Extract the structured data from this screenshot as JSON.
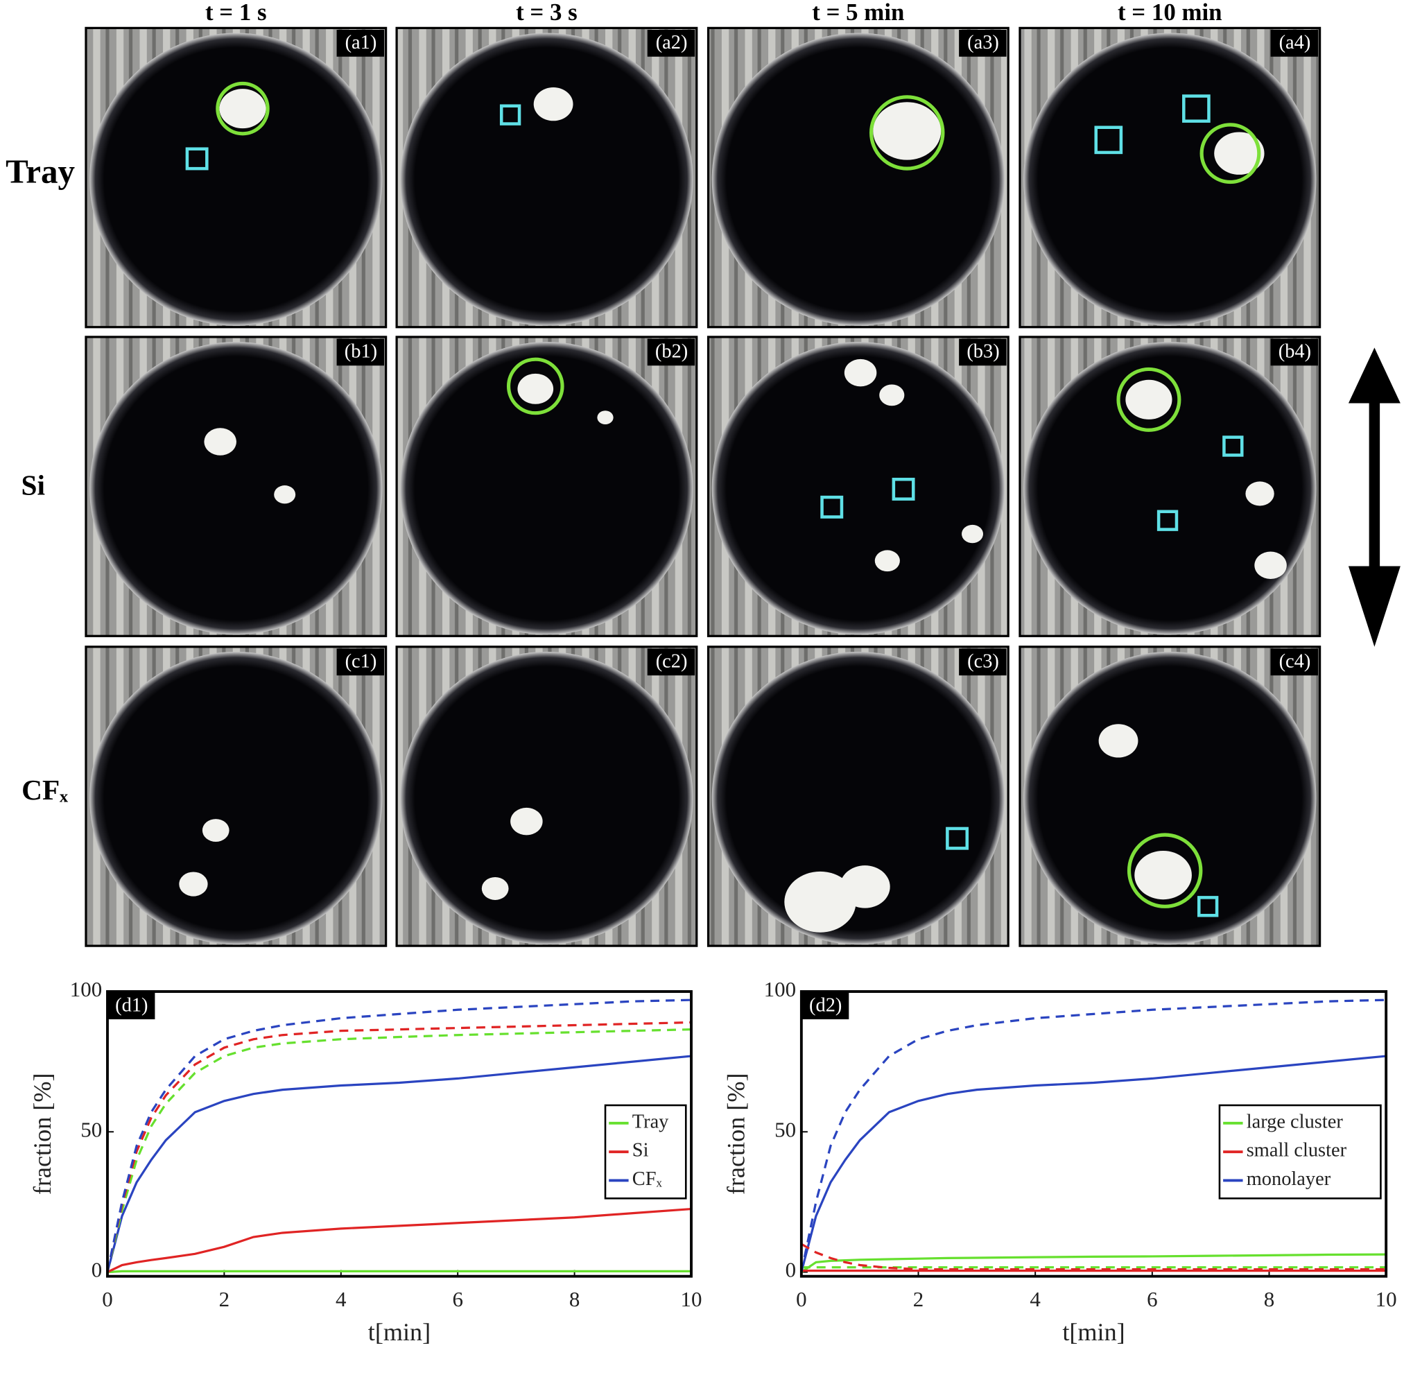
{
  "figure": {
    "column_headers": [
      "t = 1 s",
      "t = 3 s",
      "t = 5 min",
      "t = 10 min"
    ],
    "row_labels": [
      "Tray",
      "Si",
      "CFₓ"
    ],
    "panel_labels": [
      [
        "(a1)",
        "(a2)",
        "(a3)",
        "(a4)"
      ],
      [
        "(b1)",
        "(b2)",
        "(b3)",
        "(b4)"
      ],
      [
        "(c1)",
        "(c2)",
        "(c3)",
        "(c4)"
      ]
    ]
  },
  "chart_data": [
    {
      "type": "line",
      "panel_label": "(d1)",
      "xlabel": "t[min]",
      "ylabel": "fraction [%]",
      "xlim": [
        0,
        10
      ],
      "xticks": [
        0,
        2,
        4,
        6,
        8,
        10
      ],
      "ylim": [
        -1.5,
        100
      ],
      "yticks": [
        0,
        50,
        100
      ],
      "grid": false,
      "legend": "east",
      "x": [
        0,
        0.25,
        0.5,
        0.75,
        1,
        1.5,
        2,
        2.5,
        3,
        4,
        5,
        6,
        7,
        8,
        9,
        10
      ],
      "series": [
        {
          "name": "Tray",
          "color": "#66e02e",
          "style": "solid",
          "values": [
            0,
            0.3,
            0.3,
            0.3,
            0.3,
            0.3,
            0.3,
            0.3,
            0.3,
            0.3,
            0.3,
            0.3,
            0.3,
            0.3,
            0.3,
            0.3
          ]
        },
        {
          "name": "Si",
          "color": "#e02424",
          "style": "solid",
          "values": [
            0,
            2.5,
            3.5,
            4.3,
            5,
            6.5,
            9,
            12.5,
            14,
            15.5,
            16.5,
            17.5,
            18.5,
            19.5,
            21,
            22.5
          ]
        },
        {
          "name": "CFₓ",
          "color": "#2a44c0",
          "style": "solid",
          "values": [
            0,
            20,
            32,
            40,
            47,
            57,
            61,
            63.5,
            65,
            66.5,
            67.5,
            69,
            71,
            73,
            75,
            77
          ]
        },
        {
          "color": "#66e02e",
          "style": "dashed",
          "values": [
            0,
            22,
            40,
            52,
            60,
            71,
            77,
            80,
            81.5,
            83,
            83.8,
            84.5,
            85,
            85.5,
            86,
            86.5
          ]
        },
        {
          "color": "#e02424",
          "style": "dashed",
          "values": [
            0,
            24,
            43,
            55,
            63,
            74,
            80,
            83,
            84.5,
            86,
            86.5,
            87,
            87.5,
            88,
            88.5,
            89
          ]
        },
        {
          "color": "#2a44c0",
          "style": "dashed",
          "values": [
            0,
            25,
            45,
            57,
            65,
            77,
            83,
            86,
            88,
            90.5,
            92,
            93.5,
            94.5,
            95.5,
            96.5,
            97
          ]
        }
      ]
    },
    {
      "type": "line",
      "panel_label": "(d2)",
      "xlabel": "t[min]",
      "ylabel": "fraction [%]",
      "xlim": [
        0,
        10
      ],
      "xticks": [
        0,
        2,
        4,
        6,
        8,
        10
      ],
      "ylim": [
        -1.5,
        100
      ],
      "yticks": [
        0,
        50,
        100
      ],
      "grid": false,
      "legend": "east",
      "x": [
        0,
        0.25,
        0.5,
        0.75,
        1,
        1.5,
        2,
        2.5,
        3,
        4,
        5,
        6,
        7,
        8,
        9,
        10
      ],
      "series": [
        {
          "name": "large cluster",
          "color": "#66e02e",
          "style": "solid",
          "values": [
            0,
            3.5,
            4,
            4.2,
            4.4,
            4.6,
            4.8,
            5,
            5.1,
            5.3,
            5.5,
            5.6,
            5.8,
            6,
            6.2,
            6.3
          ]
        },
        {
          "name": "small cluster",
          "color": "#e02424",
          "style": "solid",
          "values": [
            0.5,
            0.5,
            0.5,
            0.5,
            0.5,
            0.5,
            0.5,
            0.5,
            0.5,
            0.5,
            0.5,
            0.5,
            0.5,
            0.5,
            0.5,
            0.5
          ]
        },
        {
          "name": "monolayer",
          "color": "#2a44c0",
          "style": "solid",
          "values": [
            0,
            20,
            32,
            40,
            47,
            57,
            61,
            63.5,
            65,
            66.5,
            67.5,
            69,
            71,
            73,
            75,
            77
          ]
        },
        {
          "color": "#66e02e",
          "style": "dashed",
          "values": [
            1.7,
            1.7,
            1.7,
            1.7,
            1.7,
            1.7,
            1.7,
            1.7,
            1.7,
            1.7,
            1.7,
            1.7,
            1.7,
            1.7,
            1.7,
            1.7
          ]
        },
        {
          "color": "#e02424",
          "style": "dashed",
          "values": [
            10,
            7,
            5,
            3.5,
            2.5,
            1.5,
            1,
            1,
            1,
            1,
            1,
            1,
            1,
            1,
            1,
            1
          ]
        },
        {
          "color": "#2a44c0",
          "style": "dashed",
          "values": [
            0,
            25,
            45,
            57,
            65,
            77,
            83,
            86,
            88,
            90.5,
            92,
            93.5,
            94.5,
            95.5,
            96.5,
            97
          ]
        }
      ]
    }
  ]
}
